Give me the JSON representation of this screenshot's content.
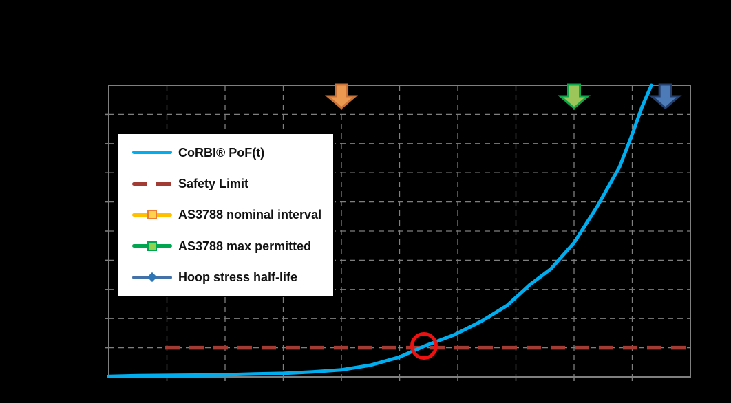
{
  "legend": {
    "entries": [
      {
        "label": "CoRBI® PoF(t)",
        "sample": "line",
        "line_color": "#00AEEF"
      },
      {
        "label": "Safety Limit",
        "sample": "dashes",
        "line_color": "#A33B35"
      },
      {
        "label": "AS3788 nominal interval",
        "sample": "line-square",
        "line_color": "#FFC000",
        "marker_fill": "#FFD34D",
        "marker_border": "#ED7D31"
      },
      {
        "label": "AS3788 max permitted",
        "sample": "line-square",
        "line_color": "#00A650",
        "marker_fill": "#92D050",
        "marker_border": "#00A650"
      },
      {
        "label": "Hoop stress half-life",
        "sample": "line-diamond",
        "line_color": "#4472A8",
        "marker_fill": "#2E75B6"
      }
    ]
  },
  "chart_data": {
    "type": "line",
    "title": "",
    "axis_labels_visible": false,
    "note": "Axis titles and tick labels are not legible (rendered black on black); values below are in gridline units of the 10x10 dashed grid",
    "grid": {
      "divisions_x": 10,
      "divisions_y": 10,
      "style": "dashed",
      "color": "#7F7F7F"
    },
    "legend_position": "upper-left inside plot",
    "xlim": [
      0,
      10
    ],
    "ylim": [
      0,
      10
    ],
    "series": [
      {
        "name": "CoRBI® PoF(t)",
        "color": "#00AEEF",
        "style": "solid",
        "points": [
          [
            0,
            0.02
          ],
          [
            0.5,
            0.04
          ],
          [
            1,
            0.05
          ],
          [
            1.5,
            0.06
          ],
          [
            2,
            0.07
          ],
          [
            2.5,
            0.1
          ],
          [
            3,
            0.12
          ],
          [
            3.5,
            0.17
          ],
          [
            4,
            0.24
          ],
          [
            4.5,
            0.4
          ],
          [
            5,
            0.68
          ],
          [
            5.43,
            1.06
          ],
          [
            5.94,
            1.44
          ],
          [
            6.41,
            1.91
          ],
          [
            6.85,
            2.45
          ],
          [
            7.24,
            3.16
          ],
          [
            7.6,
            3.7
          ],
          [
            8,
            4.6
          ],
          [
            8.4,
            5.85
          ],
          [
            8.78,
            7.19
          ],
          [
            8.98,
            8.21
          ],
          [
            9.17,
            9.27
          ],
          [
            9.33,
            10
          ]
        ]
      },
      {
        "name": "Safety Limit",
        "color": "#A33B35",
        "style": "dashed",
        "y": 1.0,
        "x_start": 0.97,
        "x_end": 10
      }
    ],
    "annotations": {
      "arrows": [
        {
          "name": "AS3788 nominal interval",
          "x": 4.0,
          "fill": "#EB9850",
          "stroke": "#C97339"
        },
        {
          "name": "AS3788 max permitted",
          "x": 8.0,
          "fill": "#9CC65A",
          "stroke": "#10A64A"
        },
        {
          "name": "Hoop stress half-life",
          "x": 9.57,
          "fill": "#4C7BB8",
          "stroke": "#23406F"
        }
      ],
      "highlight_circle": {
        "x": 5.42,
        "y": 1.06,
        "color": "#EE1111",
        "meaning": "PoF(t) curve crossing the Safety Limit"
      }
    }
  }
}
